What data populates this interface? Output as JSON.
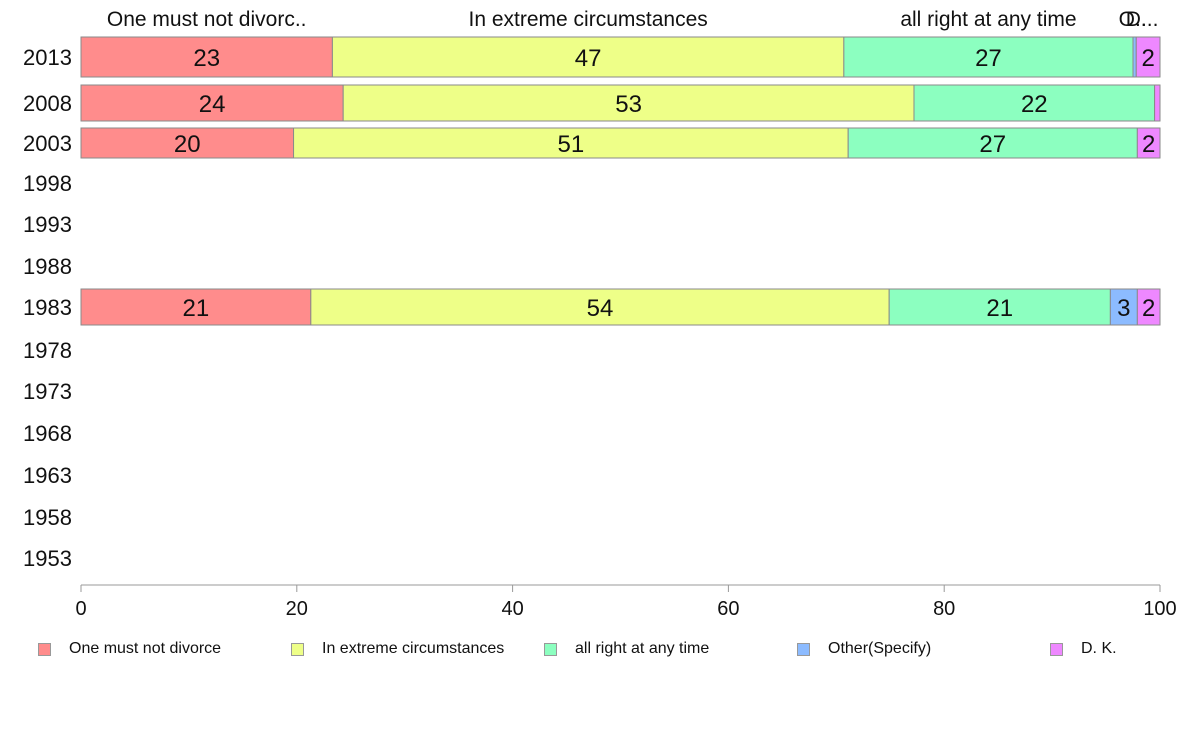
{
  "chart_data": {
    "type": "bar",
    "orientation": "horizontal",
    "stacked": true,
    "categories": [
      "2013",
      "2008",
      "2003",
      "1998",
      "1993",
      "1988",
      "1983",
      "1978",
      "1973",
      "1968",
      "1963",
      "1958",
      "1953"
    ],
    "series": [
      {
        "name": "One must not divorce",
        "header": "One must not divorc..",
        "color": "#FF8C8C",
        "values": [
          23.3,
          24.3,
          19.7,
          null,
          null,
          null,
          21.3,
          null,
          null,
          null,
          null,
          null,
          null
        ],
        "labels": [
          "23",
          "24",
          "20",
          "",
          "",
          "",
          "21",
          "",
          "",
          "",
          "",
          "",
          ""
        ]
      },
      {
        "name": "In extreme circumstances",
        "header": "In extreme circumstances",
        "color": "#EEFF88",
        "values": [
          47.4,
          52.9,
          51.4,
          null,
          null,
          null,
          53.6,
          null,
          null,
          null,
          null,
          null,
          null
        ],
        "labels": [
          "47",
          "53",
          "51",
          "",
          "",
          "",
          "54",
          "",
          "",
          "",
          "",
          "",
          ""
        ]
      },
      {
        "name": "all right at any time",
        "header": "all right at any time",
        "color": "#8CFFC0",
        "values": [
          26.8,
          22.3,
          26.8,
          null,
          null,
          null,
          20.5,
          null,
          null,
          null,
          null,
          null,
          null
        ],
        "labels": [
          "27",
          "22",
          "27",
          "",
          "",
          "",
          "21",
          "",
          "",
          "",
          "",
          "",
          ""
        ]
      },
      {
        "name": "Other(Specify)",
        "header": "O..",
        "color": "#8CBBFF",
        "values": [
          0.3,
          0.0,
          0.0,
          null,
          null,
          null,
          2.5,
          null,
          null,
          null,
          null,
          null,
          null
        ],
        "labels": [
          "",
          "",
          "",
          "",
          "",
          "",
          "3",
          "",
          "",
          "",
          "",
          "",
          ""
        ]
      },
      {
        "name": "D. K.",
        "header": "D...",
        "color": "#EE88FF",
        "values": [
          2.2,
          0.5,
          2.1,
          null,
          null,
          null,
          2.1,
          null,
          null,
          null,
          null,
          null,
          null
        ],
        "labels": [
          "2",
          "",
          "2",
          "",
          "",
          "",
          "2",
          "",
          "",
          "",
          "",
          "",
          ""
        ]
      }
    ],
    "xlim": [
      0,
      100
    ],
    "xticks": [
      0,
      20,
      40,
      60,
      80,
      100
    ],
    "xlabel": "",
    "ylabel": "",
    "grid": false,
    "legend": "bottom"
  }
}
